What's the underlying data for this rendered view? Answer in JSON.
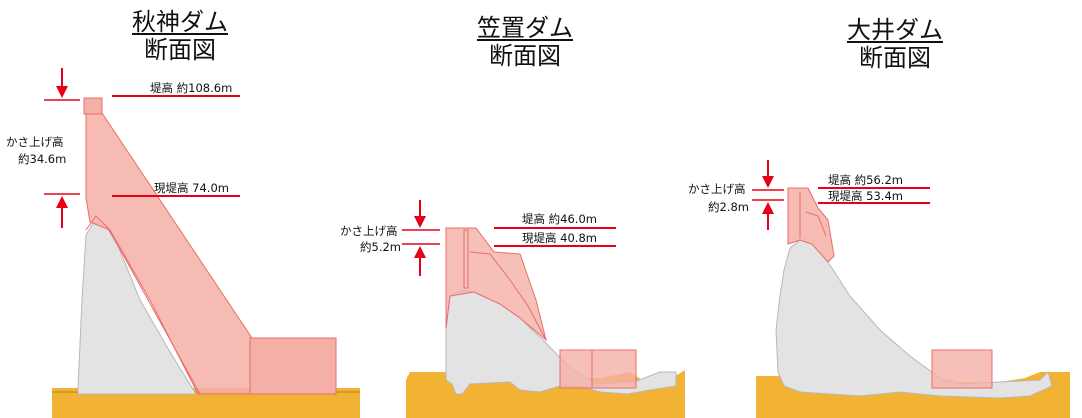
{
  "dams": [
    {
      "title_name": "秋神ダム",
      "title_section": "断面図",
      "height_after_label": "堤高 約108.6m",
      "height_current_label": "現堤高 74.0m",
      "raise_label_1": "かさ上げ高",
      "raise_label_2": "約34.6m"
    },
    {
      "title_name": "笠置ダム",
      "title_section": "断面図",
      "height_after_label": "堤高 約46.0m",
      "height_current_label": "現堤高 40.8m",
      "raise_label_1": "かさ上げ高",
      "raise_label_2": "約5.2m"
    },
    {
      "title_name": "大井ダム",
      "title_section": "断面図",
      "height_after_label": "堤高 約56.2m",
      "height_current_label": "現堤高 53.4m",
      "raise_label_1": "かさ上げ高",
      "raise_label_2": "約2.8m"
    }
  ],
  "colors": {
    "existing_dam": "#e3e3e3",
    "raised_section": "#f4b0a6",
    "marker_red": "#e8001a",
    "ground": "#f2b233"
  }
}
